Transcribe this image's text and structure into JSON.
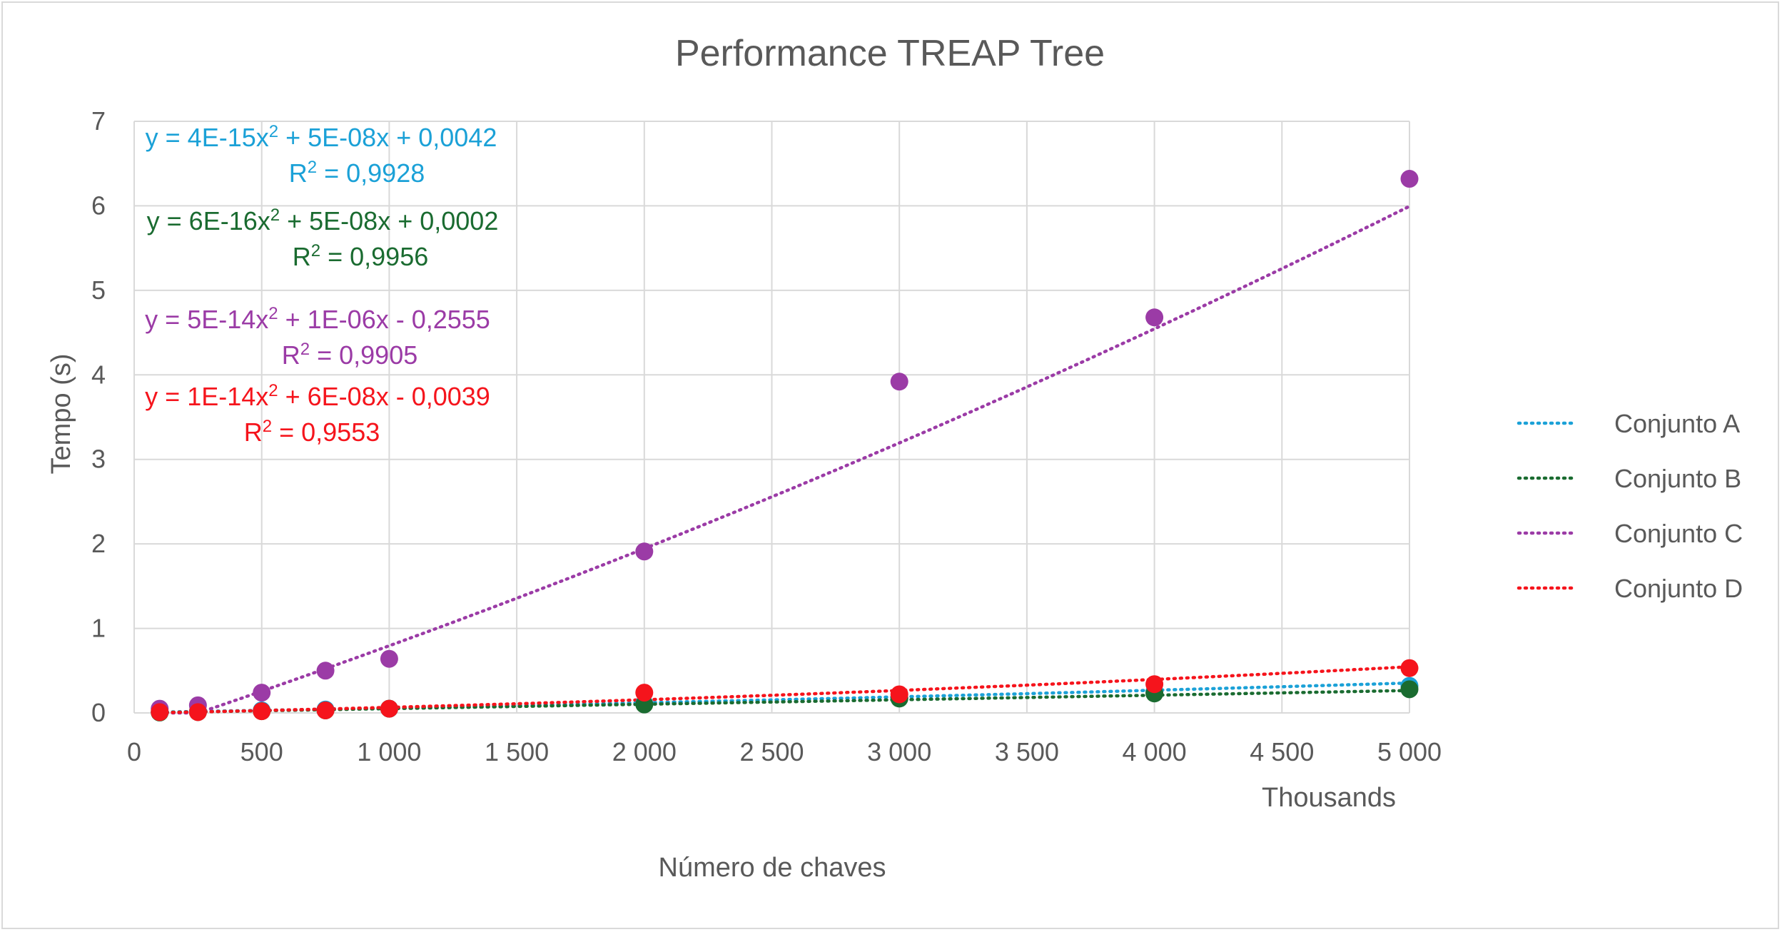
{
  "chart_data": {
    "type": "scatter",
    "title": "Performance TREAP Tree",
    "xlabel": "Número de chaves",
    "ylabel": "Tempo (s)",
    "x_unit_label": "Thousands",
    "xlim": [
      0,
      5000
    ],
    "ylim": [
      0,
      7
    ],
    "x_ticks": [
      0,
      500,
      1000,
      1500,
      2000,
      2500,
      3000,
      3500,
      4000,
      4500,
      5000
    ],
    "x_tick_labels": [
      "0",
      "500",
      "1 000",
      "1 500",
      "2 000",
      "2 500",
      "3 000",
      "3 500",
      "4 000",
      "4 500",
      "5 000"
    ],
    "y_ticks": [
      0,
      1,
      2,
      3,
      4,
      5,
      6,
      7
    ],
    "y_tick_labels": [
      "0",
      "1",
      "2",
      "3",
      "4",
      "5",
      "6",
      "7"
    ],
    "grid": true,
    "legend_position": "right",
    "x": [
      100,
      250,
      500,
      750,
      1000,
      2000,
      3000,
      4000,
      5000
    ],
    "series": [
      {
        "name": "Conjunto A",
        "color": "#1ba1d7",
        "values": [
          0.01,
          0.02,
          0.03,
          0.04,
          0.05,
          0.11,
          0.18,
          0.25,
          0.32
        ],
        "trendline": {
          "type": "polynomial",
          "order": 2,
          "a": 4e-15,
          "b": 5e-08,
          "c": 0.0042,
          "equation": "y = 4E-15x² + 5E-08x + 0,0042",
          "r2": "R² = 0,9928"
        }
      },
      {
        "name": "Conjunto B",
        "color": "#1a6b30",
        "values": [
          0.005,
          0.01,
          0.02,
          0.03,
          0.05,
          0.1,
          0.17,
          0.23,
          0.28
        ],
        "trendline": {
          "type": "polynomial",
          "order": 2,
          "a": 6e-16,
          "b": 5e-08,
          "c": 0.0002,
          "equation": "y = 6E-16x² + 5E-08x + 0,0002",
          "r2": "R² = 0,9956"
        }
      },
      {
        "name": "Conjunto C",
        "color": "#9b3ba6",
        "values": [
          0.05,
          0.09,
          0.24,
          0.5,
          0.64,
          1.91,
          3.92,
          4.68,
          6.32
        ],
        "trendline": {
          "type": "polynomial",
          "order": 2,
          "a": 5e-14,
          "b": 1e-06,
          "c": -0.2555,
          "equation": "y = 5E-14x² + 1E-06x - 0,2555",
          "r2": "R² = 0,9905"
        }
      },
      {
        "name": "Conjunto D",
        "color": "#f5141c",
        "values": [
          0.01,
          0.01,
          0.02,
          0.03,
          0.05,
          0.24,
          0.22,
          0.34,
          0.53
        ],
        "trendline": {
          "type": "polynomial",
          "order": 2,
          "a": 1e-14,
          "b": 6e-08,
          "c": -0.0039,
          "equation": "y = 1E-14x² + 6E-08x - 0,0039",
          "r2": "R² = 0,9553"
        }
      }
    ]
  }
}
